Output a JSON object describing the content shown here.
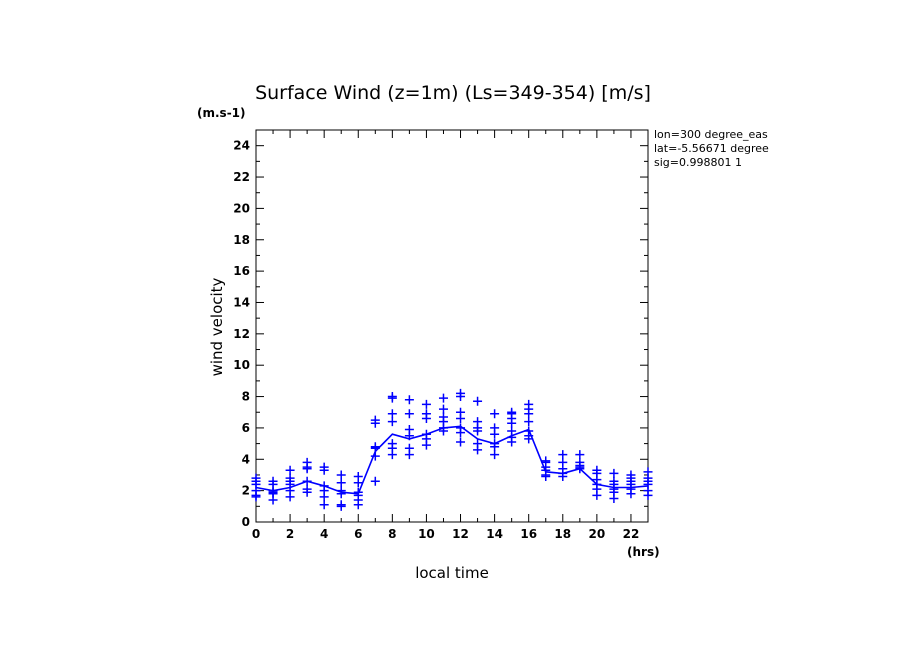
{
  "chart_data": {
    "type": "line",
    "title": "Surface Wind (z=1m) (Ls=349-354) [m/s]",
    "y_unit": "(m.s-1)",
    "x_unit": "(hrs)",
    "xlabel": "local time",
    "ylabel": "wind velocity",
    "xlim": [
      0,
      23
    ],
    "ylim": [
      0,
      25
    ],
    "x_ticks": [
      0,
      2,
      4,
      6,
      8,
      10,
      12,
      14,
      16,
      18,
      20,
      22
    ],
    "y_ticks": [
      0,
      2,
      4,
      6,
      8,
      10,
      12,
      14,
      16,
      18,
      20,
      22,
      24
    ],
    "info_lines": [
      "lon=300 degree_eas",
      "lat=-5.56671 degree",
      "sig=0.998801 1"
    ],
    "color": "#0000ff",
    "grid": false,
    "series": [
      {
        "style": "line",
        "x": [
          0,
          1,
          2,
          3,
          4,
          5,
          6,
          7,
          8,
          9,
          10,
          11,
          12,
          13,
          14,
          15,
          16,
          17,
          18,
          19,
          20,
          21,
          22,
          23
        ],
        "y": [
          2.2,
          2.0,
          2.2,
          2.6,
          2.3,
          1.9,
          1.8,
          4.5,
          5.6,
          5.3,
          5.6,
          6.0,
          6.1,
          5.3,
          5.0,
          5.5,
          5.9,
          3.2,
          3.1,
          3.4,
          2.4,
          2.2,
          2.2,
          2.3
        ]
      },
      {
        "style": "markers",
        "marker": "+",
        "points": [
          [
            0,
            2.8
          ],
          [
            0,
            2.6
          ],
          [
            0,
            2.4
          ],
          [
            0,
            2.0
          ],
          [
            0,
            1.7
          ],
          [
            0,
            1.6
          ],
          [
            1,
            2.6
          ],
          [
            1,
            2.4
          ],
          [
            1,
            2.0
          ],
          [
            1,
            1.9
          ],
          [
            1,
            1.8
          ],
          [
            1,
            1.4
          ],
          [
            2,
            3.3
          ],
          [
            2,
            2.8
          ],
          [
            2,
            2.6
          ],
          [
            2,
            2.4
          ],
          [
            2,
            2.0
          ],
          [
            2,
            1.6
          ],
          [
            3,
            3.8
          ],
          [
            3,
            3.5
          ],
          [
            3,
            3.4
          ],
          [
            3,
            2.6
          ],
          [
            3,
            2.1
          ],
          [
            3,
            1.9
          ],
          [
            4,
            3.5
          ],
          [
            4,
            3.3
          ],
          [
            4,
            2.3
          ],
          [
            4,
            2.0
          ],
          [
            4,
            1.6
          ],
          [
            4,
            1.1
          ],
          [
            5,
            3.0
          ],
          [
            5,
            2.5
          ],
          [
            5,
            2.0
          ],
          [
            5,
            1.8
          ],
          [
            5,
            1.1
          ],
          [
            5,
            1.0
          ],
          [
            6,
            2.9
          ],
          [
            6,
            2.5
          ],
          [
            6,
            1.9
          ],
          [
            6,
            1.7
          ],
          [
            6,
            1.4
          ],
          [
            6,
            1.1
          ],
          [
            7,
            6.5
          ],
          [
            7,
            6.3
          ],
          [
            7,
            4.8
          ],
          [
            7,
            4.7
          ],
          [
            7,
            4.2
          ],
          [
            7,
            2.6
          ],
          [
            8,
            8.0
          ],
          [
            8,
            7.9
          ],
          [
            8,
            6.9
          ],
          [
            8,
            6.4
          ],
          [
            8,
            5.0
          ],
          [
            8,
            4.7
          ],
          [
            8,
            4.3
          ],
          [
            9,
            7.8
          ],
          [
            9,
            6.9
          ],
          [
            9,
            5.9
          ],
          [
            9,
            5.5
          ],
          [
            9,
            4.7
          ],
          [
            9,
            4.3
          ],
          [
            10,
            7.5
          ],
          [
            10,
            6.9
          ],
          [
            10,
            6.6
          ],
          [
            10,
            5.6
          ],
          [
            10,
            5.3
          ],
          [
            10,
            4.9
          ],
          [
            11,
            7.9
          ],
          [
            11,
            7.2
          ],
          [
            11,
            6.7
          ],
          [
            11,
            6.4
          ],
          [
            11,
            6.0
          ],
          [
            11,
            5.8
          ],
          [
            12,
            8.2
          ],
          [
            12,
            8.0
          ],
          [
            12,
            7.0
          ],
          [
            12,
            6.6
          ],
          [
            12,
            6.0
          ],
          [
            12,
            5.7
          ],
          [
            12,
            5.1
          ],
          [
            13,
            7.7
          ],
          [
            13,
            6.4
          ],
          [
            13,
            6.0
          ],
          [
            13,
            5.8
          ],
          [
            13,
            5.0
          ],
          [
            13,
            4.6
          ],
          [
            14,
            6.9
          ],
          [
            14,
            6.0
          ],
          [
            14,
            5.6
          ],
          [
            14,
            5.0
          ],
          [
            14,
            4.8
          ],
          [
            14,
            4.3
          ],
          [
            15,
            7.0
          ],
          [
            15,
            6.9
          ],
          [
            15,
            6.6
          ],
          [
            15,
            6.3
          ],
          [
            15,
            5.8
          ],
          [
            15,
            5.4
          ],
          [
            15,
            5.1
          ],
          [
            16,
            7.5
          ],
          [
            16,
            7.2
          ],
          [
            16,
            6.9
          ],
          [
            16,
            6.4
          ],
          [
            16,
            5.8
          ],
          [
            16,
            5.5
          ],
          [
            16,
            5.3
          ],
          [
            17,
            3.9
          ],
          [
            17,
            3.8
          ],
          [
            17,
            3.5
          ],
          [
            17,
            3.3
          ],
          [
            17,
            3.0
          ],
          [
            17,
            2.9
          ],
          [
            18,
            4.3
          ],
          [
            18,
            3.8
          ],
          [
            18,
            3.4
          ],
          [
            18,
            3.1
          ],
          [
            18,
            2.9
          ],
          [
            19,
            4.3
          ],
          [
            19,
            3.8
          ],
          [
            19,
            3.6
          ],
          [
            19,
            3.5
          ],
          [
            19,
            3.4
          ],
          [
            20,
            3.3
          ],
          [
            20,
            3.1
          ],
          [
            20,
            2.7
          ],
          [
            20,
            2.4
          ],
          [
            20,
            2.1
          ],
          [
            20,
            1.7
          ],
          [
            21,
            3.1
          ],
          [
            21,
            2.6
          ],
          [
            21,
            2.4
          ],
          [
            21,
            2.1
          ],
          [
            21,
            1.9
          ],
          [
            21,
            1.5
          ],
          [
            22,
            3.0
          ],
          [
            22,
            2.8
          ],
          [
            22,
            2.6
          ],
          [
            22,
            2.4
          ],
          [
            22,
            2.1
          ],
          [
            22,
            1.8
          ],
          [
            23,
            3.2
          ],
          [
            23,
            2.8
          ],
          [
            23,
            2.6
          ],
          [
            23,
            2.4
          ],
          [
            23,
            2.0
          ],
          [
            23,
            1.7
          ]
        ]
      }
    ]
  }
}
